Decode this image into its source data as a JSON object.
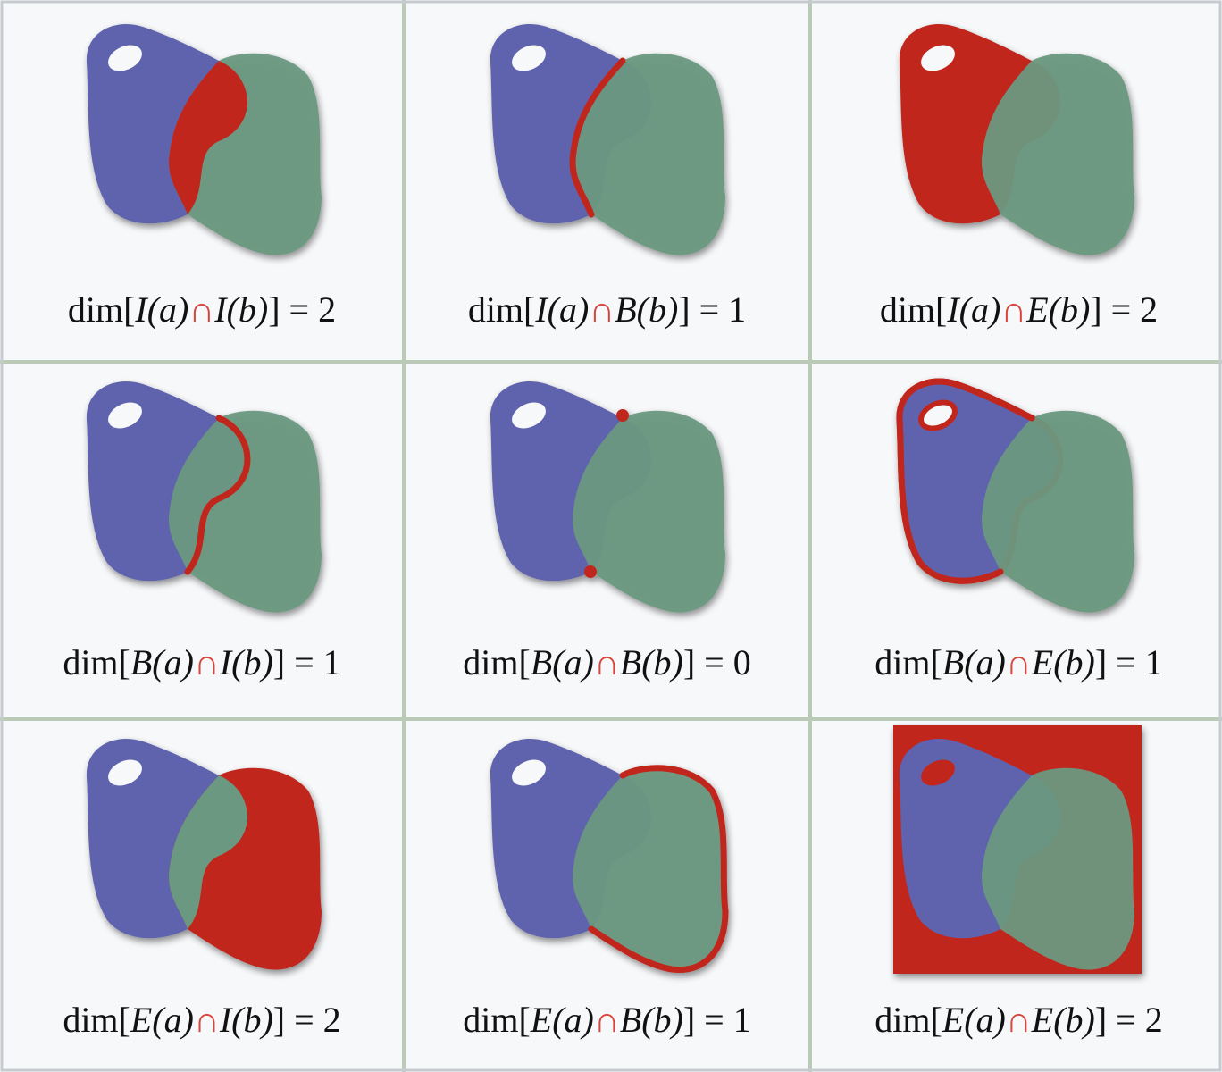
{
  "cells": [
    {
      "prefix": "dim[",
      "left": "I(a)",
      "op": "∩",
      "right": "I(b)",
      "suffix": "] = 2"
    },
    {
      "prefix": "dim[",
      "left": "I(a)",
      "op": "∩",
      "right": "B(b)",
      "suffix": "] = 1"
    },
    {
      "prefix": "dim[",
      "left": "I(a)",
      "op": "∩",
      "right": "E(b)",
      "suffix": "] = 2"
    },
    {
      "prefix": "dim[",
      "left": "B(a)",
      "op": "∩",
      "right": "I(b)",
      "suffix": "] = 1"
    },
    {
      "prefix": "dim[",
      "left": "B(a)",
      "op": "∩",
      "right": "B(b)",
      "suffix": "] = 0"
    },
    {
      "prefix": "dim[",
      "left": "B(a)",
      "op": "∩",
      "right": "E(b)",
      "suffix": "] = 1"
    },
    {
      "prefix": "dim[",
      "left": "E(a)",
      "op": "∩",
      "right": "I(b)",
      "suffix": "] = 2"
    },
    {
      "prefix": "dim[",
      "left": "E(a)",
      "op": "∩",
      "right": "B(b)",
      "suffix": "] = 1"
    },
    {
      "prefix": "dim[",
      "left": "E(a)",
      "op": "∩",
      "right": "E(b)",
      "suffix": "] = 2"
    }
  ]
}
